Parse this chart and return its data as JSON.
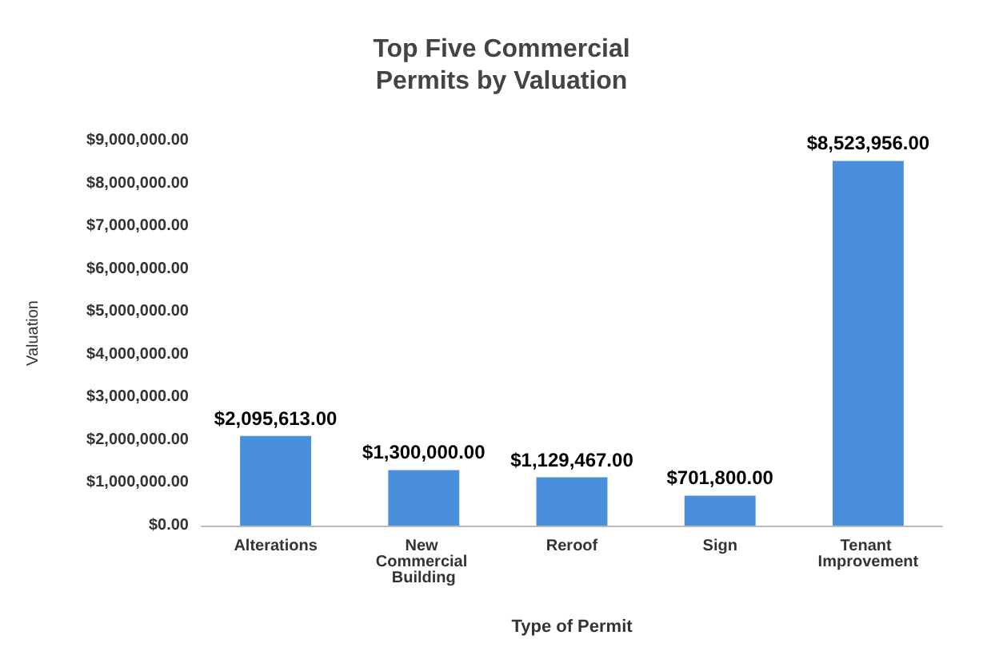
{
  "chart_data": {
    "type": "bar",
    "title": "Top Five Commercial\nPermits by Valuation",
    "xlabel": "Type of Permit",
    "ylabel": "Valuation",
    "categories": [
      "Alterations",
      "New Commercial Building",
      "Reroof",
      "Sign",
      "Tenant Improvement"
    ],
    "values": [
      2095613,
      1300000,
      1129467,
      701800,
      8523956
    ],
    "value_labels": [
      "$2,095,613.00",
      "$1,300,000.00",
      "$1,129,467.00",
      "$701,800.00",
      "$8,523,956.00"
    ],
    "color": "#4a8fdb",
    "ylim": [
      0,
      9000000
    ],
    "yticks": [
      {
        "value": 0,
        "label": "$0.00"
      },
      {
        "value": 1000000,
        "label": "$1,000,000.00"
      },
      {
        "value": 2000000,
        "label": "$2,000,000.00"
      },
      {
        "value": 3000000,
        "label": "$3,000,000.00"
      },
      {
        "value": 4000000,
        "label": "$4,000,000.00"
      },
      {
        "value": 5000000,
        "label": "$5,000,000.00"
      },
      {
        "value": 6000000,
        "label": "$6,000,000.00"
      },
      {
        "value": 7000000,
        "label": "$7,000,000.00"
      },
      {
        "value": 8000000,
        "label": "$8,000,000.00"
      },
      {
        "value": 9000000,
        "label": "$9,000,000.00"
      }
    ],
    "grid": false
  }
}
